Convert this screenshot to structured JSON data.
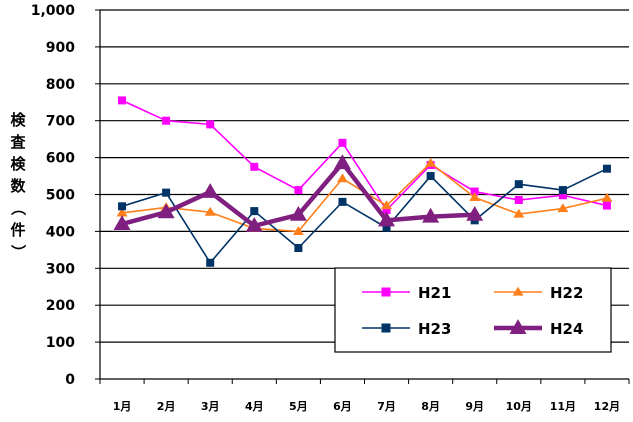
{
  "chart_data": {
    "type": "line",
    "title": "",
    "xlabel": "",
    "ylabel": "検査検数（件）",
    "categories": [
      "1月",
      "2月",
      "3月",
      "4月",
      "5月",
      "6月",
      "7月",
      "8月",
      "9月",
      "10月",
      "11月",
      "12月"
    ],
    "ylim": [
      0,
      1000
    ],
    "yticks": [
      "0",
      "100",
      "200",
      "300",
      "400",
      "500",
      "600",
      "700",
      "800",
      "900",
      "1,000"
    ],
    "grid": true,
    "legend_position": "bottom-right",
    "series": [
      {
        "name": "H21",
        "color": "#ff00ff",
        "marker": "square",
        "line_weight": "thin",
        "values": [
          755,
          700,
          690,
          575,
          512,
          640,
          458,
          580,
          508,
          485,
          498,
          470
        ]
      },
      {
        "name": "H22",
        "color": "#ff7f1a",
        "marker": "triangle",
        "line_weight": "thin",
        "values": [
          450,
          465,
          452,
          408,
          400,
          543,
          470,
          585,
          492,
          447,
          462,
          490
        ]
      },
      {
        "name": "H23",
        "color": "#003366",
        "marker": "square",
        "line_weight": "thin",
        "values": [
          468,
          505,
          315,
          455,
          355,
          480,
          410,
          550,
          430,
          528,
          512,
          570
        ]
      },
      {
        "name": "H24",
        "color": "#7f1f7f",
        "marker": "triangle",
        "line_weight": "thick",
        "values": [
          420,
          452,
          507,
          415,
          445,
          585,
          430,
          440,
          445,
          null,
          null,
          null
        ]
      }
    ]
  }
}
